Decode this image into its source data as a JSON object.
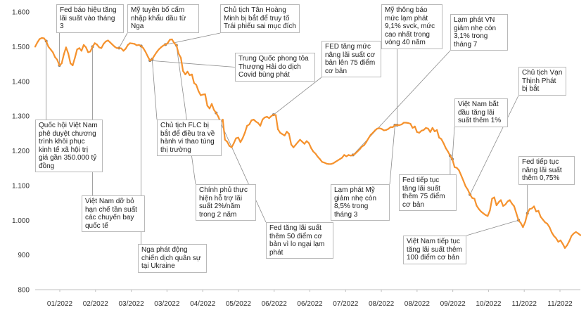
{
  "chart_data": {
    "type": "line",
    "title": "",
    "xlabel": "",
    "ylabel": "",
    "ylim": [
      800,
      1600
    ],
    "yticks": [
      800,
      900,
      1000,
      1100,
      1200,
      1300,
      1400,
      1500,
      1600
    ],
    "ytick_labels": [
      "800",
      "900",
      "1.000",
      "1.100",
      "1.200",
      "1.300",
      "1.400",
      "1.500",
      "1.600"
    ],
    "xtick_labels": [
      "01/2022",
      "02/2022",
      "03/2022",
      "03/2022",
      "04/2022",
      "05/2022",
      "06/2022",
      "06/2022",
      "07/2022",
      "08/2022",
      "08/2022",
      "09/2022",
      "10/2022",
      "11/2022",
      "11/2022"
    ],
    "grid": false,
    "legend": "none",
    "line_color": "#f5922e",
    "series": [
      {
        "values": [
          1500,
          1512,
          1522,
          1525,
          1524,
          1516,
          1500,
          1492,
          1484,
          1470,
          1462,
          1446,
          1452,
          1478,
          1498,
          1480,
          1452,
          1446,
          1468,
          1492,
          1496,
          1488,
          1505,
          1498,
          1484,
          1486,
          1500,
          1510,
          1506,
          1498,
          1496,
          1508,
          1515,
          1518,
          1512,
          1506,
          1500,
          1496,
          1496,
          1495,
          1488,
          1494,
          1505,
          1510,
          1509,
          1508,
          1504,
          1505,
          1502,
          1496,
          1485,
          1472,
          1460,
          1464,
          1474,
          1484,
          1492,
          1498,
          1503,
          1506,
          1510,
          1520,
          1521,
          1510,
          1504,
          1480,
          1468,
          1430,
          1420,
          1428,
          1418,
          1420,
          1395,
          1390,
          1372,
          1360,
          1362,
          1363,
          1330,
          1322,
          1335,
          1318,
          1309,
          1298,
          1282,
          1290,
          1232,
          1226,
          1214,
          1210,
          1222,
          1236,
          1238,
          1225,
          1236,
          1252,
          1272,
          1276,
          1288,
          1290,
          1284,
          1280,
          1272,
          1290,
          1296,
          1298,
          1294,
          1300,
          1304,
          1303,
          1262,
          1252,
          1248,
          1244,
          1255,
          1249,
          1218,
          1210,
          1217,
          1225,
          1232,
          1226,
          1220,
          1228,
          1222,
          1208,
          1198,
          1192,
          1183,
          1176,
          1168,
          1166,
          1163,
          1162,
          1162,
          1164,
          1168,
          1172,
          1176,
          1180,
          1188,
          1184,
          1188,
          1186,
          1188,
          1192,
          1198,
          1204,
          1212,
          1216,
          1225,
          1236,
          1246,
          1252,
          1259,
          1264,
          1265,
          1263,
          1259,
          1260,
          1263,
          1268,
          1268,
          1274,
          1274,
          1274,
          1276,
          1281,
          1281,
          1280,
          1278,
          1266,
          1270,
          1254,
          1252,
          1258,
          1260,
          1266,
          1264,
          1254,
          1266,
          1256,
          1260,
          1238,
          1234,
          1222,
          1208,
          1198,
          1186,
          1176,
          1153,
          1151,
          1144,
          1129,
          1114,
          1098,
          1088,
          1074,
          1064,
          1062,
          1042,
          1032,
          1025,
          1020,
          1015,
          1012,
          1028,
          1062,
          1066,
          1043,
          1052,
          1058,
          1041,
          1045,
          1054,
          1058,
          1048,
          1040,
          1020,
          1000,
          992,
          980,
          995,
          1020,
          1032,
          1034,
          1040,
          1025,
          1027,
          1010,
          1002,
          994,
          990,
          980,
          965,
          955,
          948,
          938,
          942,
          932,
          920,
          928,
          940,
          955,
          962,
          966,
          962,
          957
        ]
      }
    ],
    "annotations": [
      "Fed báo hiệu tăng lãi suất vào tháng 3",
      "Mỹ tuyên bố cấm nhập khẩu dầu từ Nga",
      "Chủ tịch Tân Hoàng Minh bị bắt để truy tố Trái phiếu sai mục đích",
      "Mỹ thông báo mức lạm phát 9,1% svck, mức cao nhất trong vòng 40 năm",
      "FED tăng mức nâng lãi suất cơ bản lên 75 điểm cơ bản",
      "Lạm phát VN giảm nhẹ còn 3,1% trong tháng 7",
      "Trung Quốc phong tỏa Thượng Hải do dịch Covid bùng phát",
      "Chủ tịch Vạn Thịnh Phát bị bắt",
      "Việt Nam bắt đầu tăng lãi suất thêm 1%",
      "Quốc hội Việt Nam phê duyệt chương trình khôi phục kinh tế xã hội trị giá gần 350.000 tỷ đồng",
      "Chủ tịch FLC bị bắt để điều tra về hành vi thao túng thị trường",
      "Fed tiếp tục nâng lãi suất thêm 0,75%",
      "Fed tiếp tục tăng lãi suất thêm 75 điểm cơ bản",
      "Lạm phát Mỹ giảm nhẹ còn 8,5% trong tháng 3",
      "Chính phủ thực hiện hỗ trợ lãi suất 2%/năm trong 2 năm",
      "Việt Nam dỡ bỏ hạn chế tần suất các chuyến bay quốc tế",
      "Fed tăng lãi suất thêm 50 điểm cơ bản vì lo ngại lạm phát",
      "Việt Nam tiếp tục tăng lãi suất thêm 100 điểm cơ bản",
      "Nga phát động chiến dịch quân sự tại Ukraine"
    ]
  }
}
